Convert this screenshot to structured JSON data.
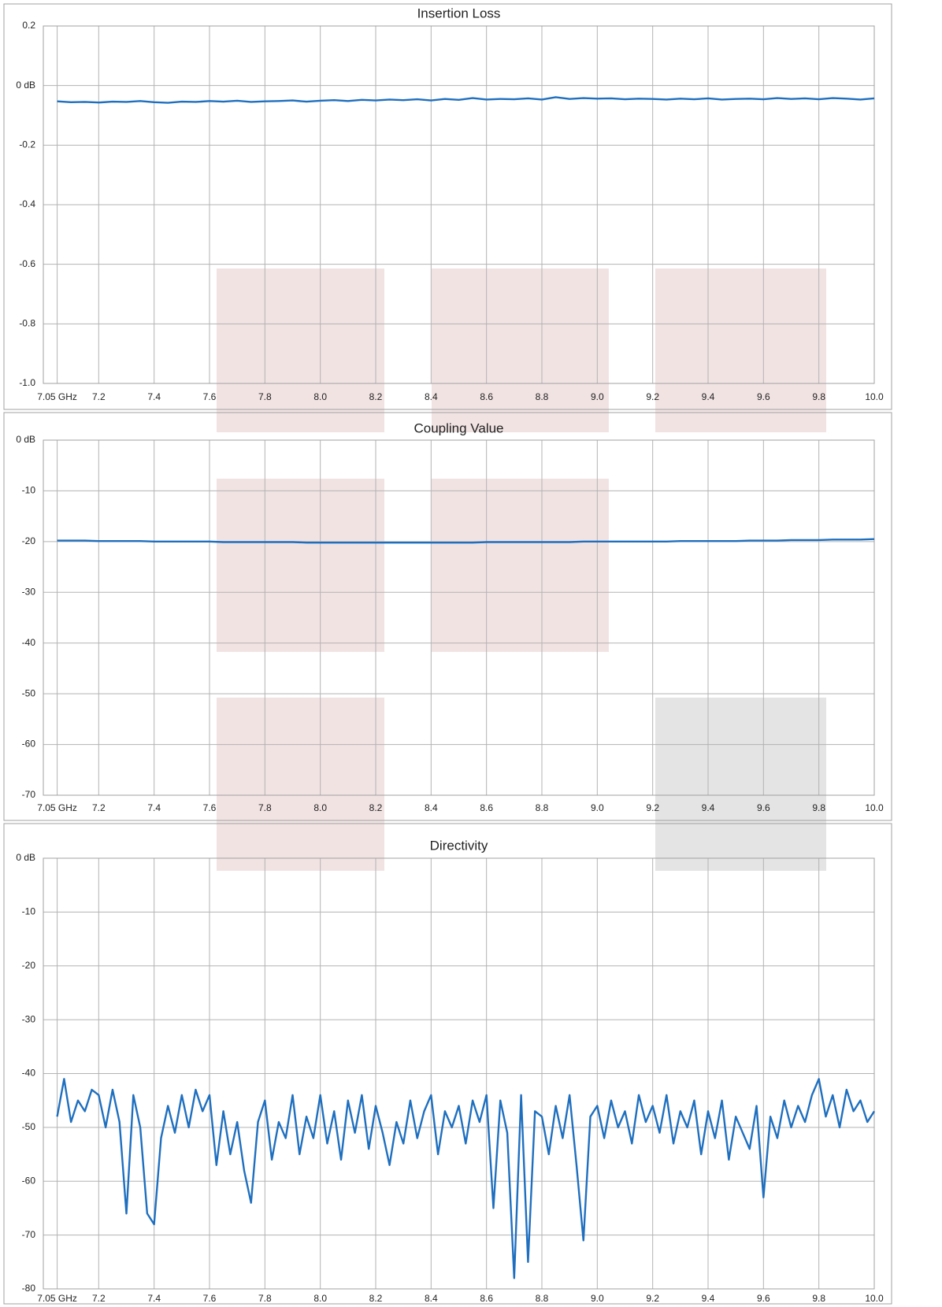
{
  "chart_data": [
    {
      "type": "line",
      "title": "Insertion Loss",
      "color": "#1f6fbf",
      "grid": true,
      "xlim": [
        7.0,
        10.0
      ],
      "xticks": [
        {
          "value": 7.05,
          "label": "7.05 GHz"
        },
        7.2,
        7.4,
        7.6,
        7.8,
        {
          "value": 8,
          "label": "8.0"
        },
        8.2,
        8.4,
        8.6,
        8.8,
        {
          "value": 9,
          "label": "9.0"
        },
        9.2,
        9.4,
        9.6,
        9.8,
        {
          "value": 10,
          "label": "10.0"
        }
      ],
      "ylim": [
        -1.0,
        0.2
      ],
      "yticks": [
        0.2,
        {
          "value": 0,
          "label": "0 dB"
        },
        -0.2,
        -0.4,
        -0.6,
        -0.8,
        {
          "value": -1,
          "label": "-1.0"
        }
      ],
      "x": [
        7.05,
        7.1,
        7.15,
        7.2,
        7.25,
        7.3,
        7.35,
        7.4,
        7.45,
        7.5,
        7.55,
        7.6,
        7.65,
        7.7,
        7.75,
        7.8,
        7.85,
        7.9,
        7.95,
        8.0,
        8.05,
        8.1,
        8.15,
        8.2,
        8.25,
        8.3,
        8.35,
        8.4,
        8.45,
        8.5,
        8.55,
        8.6,
        8.65,
        8.7,
        8.75,
        8.8,
        8.85,
        8.9,
        8.95,
        9.0,
        9.05,
        9.1,
        9.15,
        9.2,
        9.25,
        9.3,
        9.35,
        9.4,
        9.45,
        9.5,
        9.55,
        9.6,
        9.65,
        9.7,
        9.75,
        9.8,
        9.85,
        9.9,
        9.95,
        10.0
      ],
      "values": [
        -0.053,
        -0.056,
        -0.055,
        -0.057,
        -0.054,
        -0.055,
        -0.052,
        -0.056,
        -0.058,
        -0.054,
        -0.055,
        -0.052,
        -0.054,
        -0.051,
        -0.055,
        -0.053,
        -0.052,
        -0.05,
        -0.054,
        -0.051,
        -0.049,
        -0.052,
        -0.048,
        -0.05,
        -0.047,
        -0.049,
        -0.046,
        -0.05,
        -0.045,
        -0.048,
        -0.042,
        -0.047,
        -0.045,
        -0.046,
        -0.043,
        -0.047,
        -0.039,
        -0.045,
        -0.042,
        -0.044,
        -0.043,
        -0.046,
        -0.044,
        -0.045,
        -0.047,
        -0.044,
        -0.046,
        -0.043,
        -0.047,
        -0.045,
        -0.044,
        -0.046,
        -0.042,
        -0.045,
        -0.043,
        -0.046,
        -0.042,
        -0.044,
        -0.047,
        -0.043
      ]
    },
    {
      "type": "line",
      "title": "Coupling Value",
      "color": "#1f6fbf",
      "grid": true,
      "xlim": [
        7.0,
        10.0
      ],
      "xticks": [
        {
          "value": 7.05,
          "label": "7.05 GHz"
        },
        7.2,
        7.4,
        7.6,
        7.8,
        {
          "value": 8,
          "label": "8.0"
        },
        8.2,
        8.4,
        8.6,
        8.8,
        {
          "value": 9,
          "label": "9.0"
        },
        9.2,
        9.4,
        9.6,
        9.8,
        {
          "value": 10,
          "label": "10.0"
        }
      ],
      "ylim": [
        -70,
        0
      ],
      "yticks": [
        {
          "value": 0,
          "label": "0 dB"
        },
        -10,
        -20,
        -30,
        -40,
        -50,
        -60,
        -70
      ],
      "x": [
        7.05,
        7.1,
        7.15,
        7.2,
        7.25,
        7.3,
        7.35,
        7.4,
        7.45,
        7.5,
        7.55,
        7.6,
        7.65,
        7.7,
        7.75,
        7.8,
        7.85,
        7.9,
        7.95,
        8.0,
        8.05,
        8.1,
        8.15,
        8.2,
        8.25,
        8.3,
        8.35,
        8.4,
        8.45,
        8.5,
        8.55,
        8.6,
        8.65,
        8.7,
        8.75,
        8.8,
        8.85,
        8.9,
        8.95,
        9.0,
        9.05,
        9.1,
        9.15,
        9.2,
        9.25,
        9.3,
        9.35,
        9.4,
        9.45,
        9.5,
        9.55,
        9.6,
        9.65,
        9.7,
        9.75,
        9.8,
        9.85,
        9.9,
        9.95,
        10.0
      ],
      "values": [
        -19.8,
        -19.8,
        -19.8,
        -19.9,
        -19.9,
        -19.9,
        -19.9,
        -20.0,
        -20.0,
        -20.0,
        -20.0,
        -20.0,
        -20.1,
        -20.1,
        -20.1,
        -20.1,
        -20.1,
        -20.1,
        -20.2,
        -20.2,
        -20.2,
        -20.2,
        -20.2,
        -20.2,
        -20.2,
        -20.2,
        -20.2,
        -20.2,
        -20.2,
        -20.2,
        -20.2,
        -20.1,
        -20.1,
        -20.1,
        -20.1,
        -20.1,
        -20.1,
        -20.1,
        -20.0,
        -20.0,
        -20.0,
        -20.0,
        -20.0,
        -20.0,
        -20.0,
        -19.9,
        -19.9,
        -19.9,
        -19.9,
        -19.9,
        -19.8,
        -19.8,
        -19.8,
        -19.7,
        -19.7,
        -19.7,
        -19.6,
        -19.6,
        -19.6,
        -19.5
      ]
    },
    {
      "type": "line",
      "title": "Directivity",
      "color": "#1f6fbf",
      "grid": true,
      "xlim": [
        7.0,
        10.0
      ],
      "xticks": [
        {
          "value": 7.05,
          "label": "7.05 GHz"
        },
        7.2,
        7.4,
        7.6,
        7.8,
        {
          "value": 8,
          "label": "8.0"
        },
        8.2,
        8.4,
        8.6,
        8.8,
        {
          "value": 9,
          "label": "9.0"
        },
        9.2,
        9.4,
        9.6,
        9.8,
        {
          "value": 10,
          "label": "10.0"
        }
      ],
      "ylim": [
        -80,
        0
      ],
      "yticks": [
        {
          "value": 0,
          "label": "0 dB"
        },
        -10,
        -20,
        -30,
        -40,
        -50,
        -60,
        -70,
        -80
      ],
      "x": [
        7.05,
        7.075,
        7.1,
        7.125,
        7.15,
        7.175,
        7.2,
        7.225,
        7.25,
        7.275,
        7.3,
        7.325,
        7.35,
        7.375,
        7.4,
        7.425,
        7.45,
        7.475,
        7.5,
        7.525,
        7.55,
        7.575,
        7.6,
        7.625,
        7.65,
        7.675,
        7.7,
        7.725,
        7.75,
        7.775,
        7.8,
        7.825,
        7.85,
        7.875,
        7.9,
        7.925,
        7.95,
        7.975,
        8.0,
        8.025,
        8.05,
        8.075,
        8.1,
        8.125,
        8.15,
        8.175,
        8.2,
        8.225,
        8.25,
        8.275,
        8.3,
        8.325,
        8.35,
        8.375,
        8.4,
        8.425,
        8.45,
        8.475,
        8.5,
        8.525,
        8.55,
        8.575,
        8.6,
        8.625,
        8.65,
        8.675,
        8.7,
        8.725,
        8.75,
        8.775,
        8.8,
        8.825,
        8.85,
        8.875,
        8.9,
        8.925,
        8.95,
        8.975,
        9.0,
        9.025,
        9.05,
        9.075,
        9.1,
        9.125,
        9.15,
        9.175,
        9.2,
        9.225,
        9.25,
        9.275,
        9.3,
        9.325,
        9.35,
        9.375,
        9.4,
        9.425,
        9.45,
        9.475,
        9.5,
        9.525,
        9.55,
        9.575,
        9.6,
        9.625,
        9.65,
        9.675,
        9.7,
        9.725,
        9.75,
        9.775,
        9.8,
        9.825,
        9.85,
        9.875,
        9.9,
        9.925,
        9.95,
        9.975,
        10.0
      ],
      "values": [
        -48,
        -41,
        -49,
        -45,
        -47,
        -43,
        -44,
        -50,
        -43,
        -49,
        -66,
        -44,
        -50,
        -66,
        -68,
        -52,
        -46,
        -51,
        -44,
        -50,
        -43,
        -47,
        -44,
        -57,
        -47,
        -55,
        -49,
        -58,
        -64,
        -49,
        -45,
        -56,
        -49,
        -52,
        -44,
        -55,
        -48,
        -52,
        -44,
        -53,
        -47,
        -56,
        -45,
        -51,
        -44,
        -54,
        -46,
        -51,
        -57,
        -49,
        -53,
        -45,
        -52,
        -47,
        -44,
        -55,
        -47,
        -50,
        -46,
        -53,
        -45,
        -49,
        -44,
        -65,
        -45,
        -51,
        -78,
        -44,
        -75,
        -47,
        -48,
        -55,
        -46,
        -52,
        -44,
        -57,
        -71,
        -48,
        -46,
        -52,
        -45,
        -50,
        -47,
        -53,
        -44,
        -49,
        -46,
        -51,
        -44,
        -53,
        -47,
        -50,
        -45,
        -55,
        -47,
        -52,
        -45,
        -56,
        -48,
        -51,
        -54,
        -46,
        -63,
        -48,
        -52,
        -45,
        -50,
        -46,
        -49,
        -44,
        -41,
        -48,
        -44,
        -50,
        -43,
        -47,
        -45,
        -49,
        -47
      ]
    }
  ]
}
